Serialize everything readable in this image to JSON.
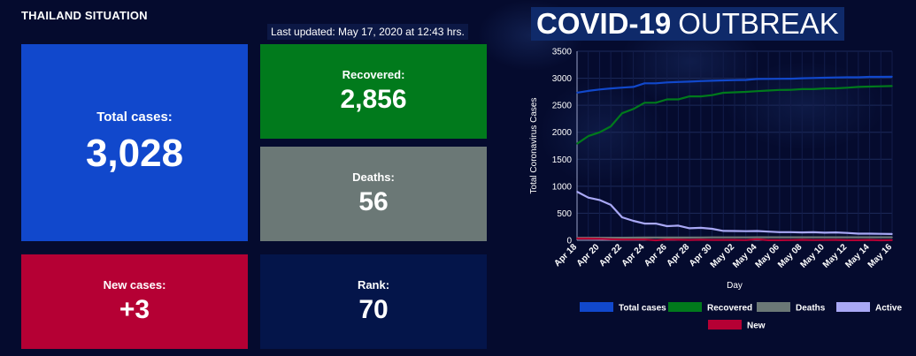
{
  "header": {
    "title": "THAILAND SITUATION",
    "last_updated": "Last updated: May 17, 2020 at 12:43 hrs."
  },
  "banner": {
    "bold": "COVID-19",
    "light": "OUTBREAK"
  },
  "cards": {
    "total": {
      "label": "Total cases:",
      "value": "3,028"
    },
    "recovered": {
      "label": "Recovered:",
      "value": "2,856"
    },
    "deaths": {
      "label": "Deaths:",
      "value": "56"
    },
    "new": {
      "label": "New cases:",
      "value": "+3"
    },
    "rank": {
      "label": "Rank:",
      "value": "70"
    }
  },
  "colors": {
    "total": "#1148cc",
    "recovered": "#017a1c",
    "deaths": "#6b7876",
    "active": "#a9a8f5",
    "new": "#b50034"
  },
  "chart_data": {
    "type": "line",
    "xlabel": "Day",
    "ylabel": "Total Coronavirus Cases",
    "ylim": [
      0,
      3500
    ],
    "yticks": [
      0,
      500,
      1000,
      1500,
      2000,
      2500,
      3000,
      3500
    ],
    "grid": true,
    "legend_position": "bottom",
    "x": [
      "Apr 18",
      "Apr 19",
      "Apr 20",
      "Apr 21",
      "Apr 22",
      "Apr 23",
      "Apr 24",
      "Apr 25",
      "Apr 26",
      "Apr 27",
      "Apr 28",
      "Apr 29",
      "Apr 30",
      "May 01",
      "May 02",
      "May 03",
      "May 04",
      "May 05",
      "May 06",
      "May 07",
      "May 08",
      "May 09",
      "May 10",
      "May 11",
      "May 12",
      "May 13",
      "May 14",
      "May 15",
      "May 16"
    ],
    "xtick_labels": [
      "Apr 18",
      "Apr 20",
      "Apr 22",
      "Apr 24",
      "Apr 26",
      "Apr 28",
      "Apr 30",
      "May 02",
      "May 04",
      "May 06",
      "May 08",
      "May 10",
      "May 12",
      "May 14",
      "May 16"
    ],
    "series": [
      {
        "name": "Total cases",
        "color": "#1148cc",
        "values": [
          2733,
          2765,
          2792,
          2811,
          2826,
          2839,
          2907,
          2907,
          2922,
          2931,
          2938,
          2947,
          2954,
          2960,
          2966,
          2969,
          2987,
          2988,
          2989,
          2992,
          3000,
          3004,
          3009,
          3015,
          3017,
          3018,
          3025,
          3025,
          3028
        ]
      },
      {
        "name": "Recovered",
        "color": "#017a1c",
        "values": [
          1787,
          1928,
          1999,
          2108,
          2352,
          2430,
          2547,
          2547,
          2609,
          2609,
          2665,
          2665,
          2687,
          2732,
          2740,
          2747,
          2761,
          2772,
          2784,
          2785,
          2798,
          2799,
          2812,
          2813,
          2825,
          2840,
          2846,
          2850,
          2856
        ]
      },
      {
        "name": "Deaths",
        "color": "#6b7876",
        "values": [
          47,
          47,
          47,
          47,
          48,
          49,
          51,
          51,
          51,
          51,
          51,
          52,
          54,
          54,
          54,
          54,
          55,
          55,
          55,
          56,
          56,
          56,
          56,
          56,
          56,
          56,
          56,
          56,
          56
        ]
      },
      {
        "name": "Active",
        "color": "#a9a8f5",
        "values": [
          899,
          790,
          746,
          656,
          426,
          360,
          309,
          309,
          262,
          271,
          222,
          230,
          213,
          174,
          172,
          168,
          171,
          161,
          150,
          151,
          146,
          149,
          141,
          146,
          136,
          122,
          123,
          119,
          116
        ]
      },
      {
        "name": "New",
        "color": "#b50034",
        "values": [
          33,
          32,
          27,
          19,
          15,
          13,
          15,
          0,
          15,
          9,
          7,
          9,
          7,
          6,
          6,
          3,
          18,
          1,
          1,
          3,
          8,
          4,
          5,
          6,
          2,
          1,
          7,
          0,
          3
        ]
      }
    ]
  }
}
